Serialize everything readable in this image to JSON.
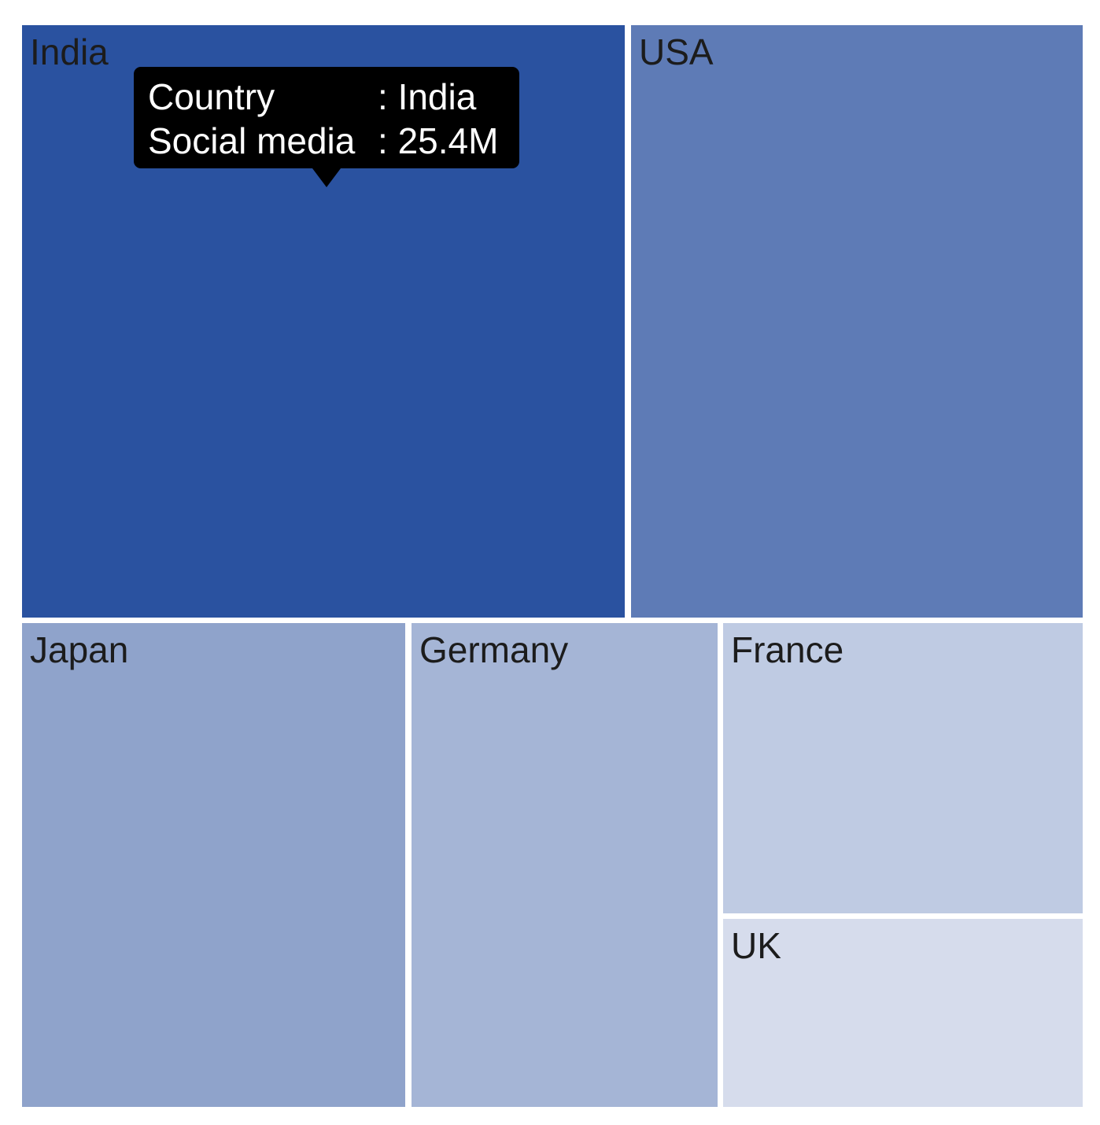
{
  "chart_data": {
    "type": "treemap",
    "items": [
      {
        "name": "India",
        "color": "#2a52a0"
      },
      {
        "name": "USA",
        "color": "#5e7bb6"
      },
      {
        "name": "Japan",
        "color": "#8fa3cb"
      },
      {
        "name": "Germany",
        "color": "#a5b5d6"
      },
      {
        "name": "France",
        "color": "#bfcbe3"
      },
      {
        "name": "UK",
        "color": "#d6dcec"
      }
    ],
    "tooltip": {
      "rows": [
        {
          "key": "Country",
          "sep": ":",
          "value": "India"
        },
        {
          "key": "Social media",
          "sep": ":",
          "value": "25.4M"
        }
      ]
    }
  }
}
